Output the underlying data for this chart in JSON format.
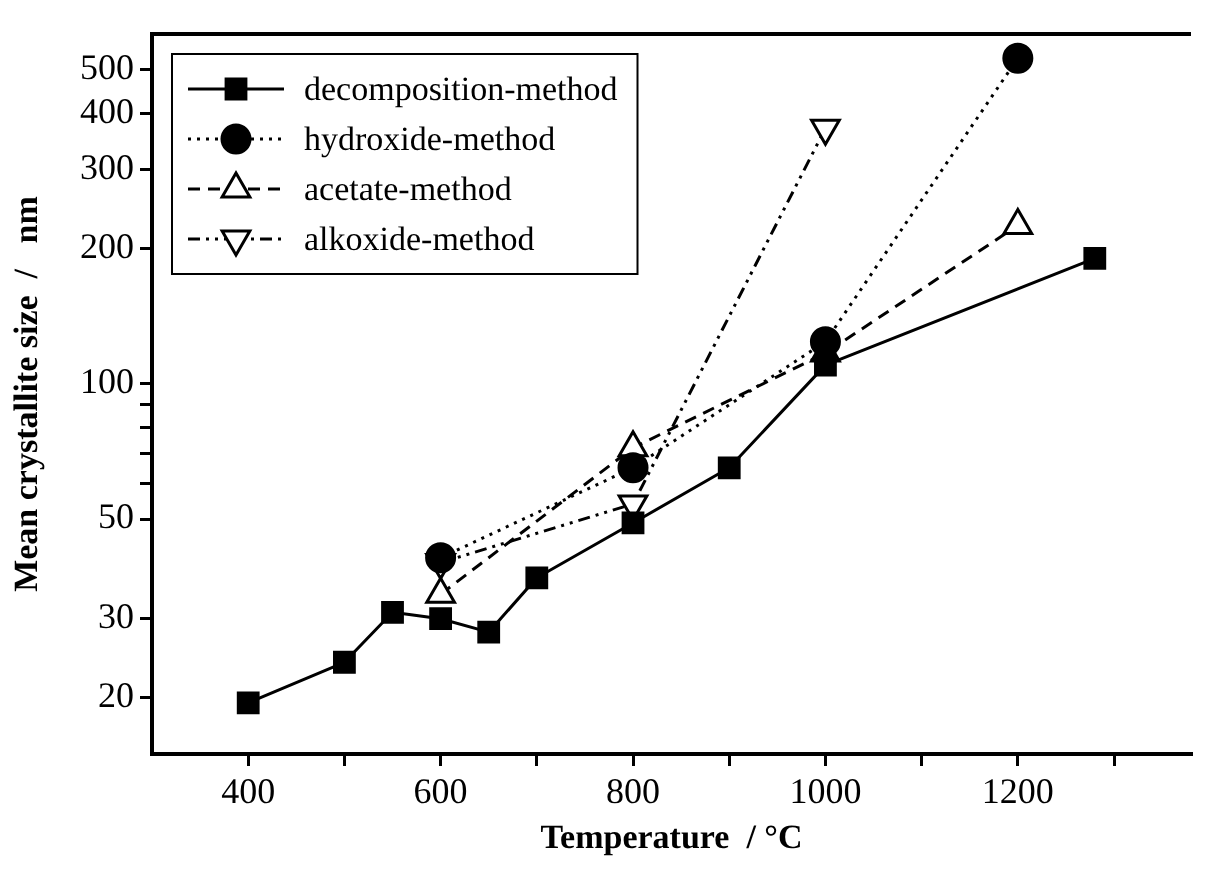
{
  "chart_data": {
    "type": "line",
    "xlabel": "Temperature  / °C",
    "ylabel": "Mean crystallite size  /   nm",
    "log": "y",
    "legend": "top left",
    "xlim": [
      300,
      1380
    ],
    "xticks": [
      400,
      {
        "value": 500,
        "label": null
      },
      600,
      {
        "value": 700,
        "label": null
      },
      800,
      {
        "value": 900,
        "label": null
      },
      1000,
      {
        "value": 1100,
        "label": null
      },
      1200,
      {
        "value": 1300,
        "label": null
      }
    ],
    "ylim": [
      15,
      600
    ],
    "yticks": [
      20,
      30,
      50,
      {
        "value": 60,
        "label": null
      },
      {
        "value": 70,
        "label": null
      },
      {
        "value": 80,
        "label": null
      },
      {
        "value": 90,
        "label": null
      },
      100,
      200,
      300,
      400,
      500
    ],
    "series": [
      {
        "name": "decomposition-method",
        "color": "#000000",
        "marker": "square",
        "line_style": "solid",
        "x": [
          400,
          500,
          550,
          600,
          650,
          700,
          800,
          900,
          1000,
          1280
        ],
        "values": [
          19.5,
          24,
          31,
          30,
          28,
          37,
          49,
          65,
          110,
          190
        ]
      },
      {
        "name": "hydroxide-method",
        "color": "#000000",
        "marker": "circle",
        "line_style": "dotted",
        "x": [
          600,
          800,
          1000,
          1200
        ],
        "values": [
          41,
          65,
          124,
          530
        ]
      },
      {
        "name": "acetate-method",
        "color": "#000000",
        "marker": "triangle",
        "line_style": "dashed",
        "x": [
          600,
          800,
          1000,
          1200
        ],
        "values": [
          34,
          72,
          117,
          225
        ]
      },
      {
        "name": "alkoxide-method",
        "color": "#000000",
        "marker": "triangle-down",
        "line_style": "dashdot",
        "x": [
          600,
          800,
          1000
        ],
        "values": [
          40,
          54,
          370
        ]
      }
    ]
  }
}
